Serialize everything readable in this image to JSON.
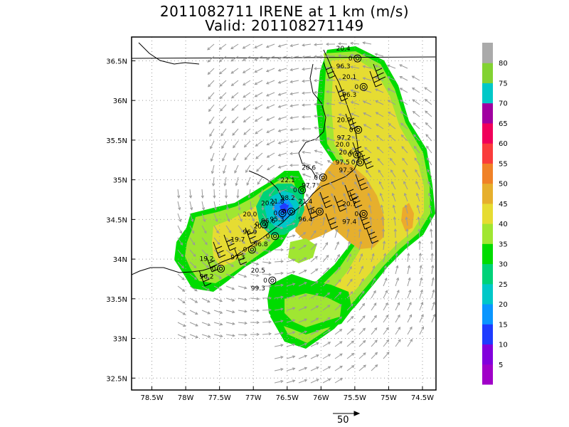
{
  "title": {
    "line1": "2011082711 IRENE at 1 km (m/s)",
    "line2": "Valid: 201108271149"
  },
  "map": {
    "lat_range": [
      32.35,
      36.8
    ],
    "lon_range": [
      -78.8,
      -74.3
    ],
    "lat_ticks": [
      {
        "value": 36.5,
        "label": "36.5N"
      },
      {
        "value": 36.0,
        "label": "36N"
      },
      {
        "value": 35.5,
        "label": "35.5N"
      },
      {
        "value": 35.0,
        "label": "35N"
      },
      {
        "value": 34.5,
        "label": "34.5N"
      },
      {
        "value": 34.0,
        "label": "34N"
      },
      {
        "value": 33.5,
        "label": "33.5N"
      },
      {
        "value": 33.0,
        "label": "33N"
      },
      {
        "value": 32.5,
        "label": "32.5N"
      }
    ],
    "lon_ticks": [
      {
        "value": -78.5,
        "label": "78.5W"
      },
      {
        "value": -78.0,
        "label": "78W"
      },
      {
        "value": -77.5,
        "label": "77.5W"
      },
      {
        "value": -77.0,
        "label": "77W"
      },
      {
        "value": -76.5,
        "label": "76.5W"
      },
      {
        "value": -76.0,
        "label": "76W"
      },
      {
        "value": -75.5,
        "label": "75.5W"
      },
      {
        "value": -75.0,
        "label": "75W"
      },
      {
        "value": -74.5,
        "label": "74.5W"
      }
    ],
    "gridlines": true,
    "vector_reference": {
      "value": 50,
      "label": "50"
    }
  },
  "colorbar": {
    "colors": [
      "#a000c8",
      "#8200dc",
      "#1e3cff",
      "#0a96ff",
      "#00c8c8",
      "#00d278",
      "#00dc00",
      "#a0e632",
      "#e6dc32",
      "#e6af2d",
      "#f08228",
      "#fa3c3c",
      "#f0005a",
      "#a000a0",
      "#00c8c8",
      "#82d232",
      "#aaaaaa"
    ],
    "labels": [
      "5",
      "10",
      "15",
      "20",
      "25",
      "30",
      "35",
      "40",
      "45",
      "50",
      "55",
      "60",
      "65",
      "70",
      "75",
      "80"
    ]
  },
  "stations": [
    {
      "lat": 36.53,
      "lon": -75.46,
      "lines": [
        "20.4",
        "0",
        "96.3"
      ]
    },
    {
      "lat": 36.17,
      "lon": -75.37,
      "lines": [
        "20.1",
        "0",
        "96.3"
      ]
    },
    {
      "lat": 35.63,
      "lon": -75.45,
      "lines": [
        "20.0",
        "0",
        "97.2"
      ]
    },
    {
      "lat": 35.32,
      "lon": -75.47,
      "lines": [
        "20.0",
        "0",
        "97.5"
      ]
    },
    {
      "lat": 35.22,
      "lon": -75.42,
      "lines": [
        "20.6",
        "0",
        "97.3"
      ]
    },
    {
      "lat": 35.03,
      "lon": -75.97,
      "lines": [
        "20.6",
        "0",
        "97.7"
      ]
    },
    {
      "lat": 34.87,
      "lon": -76.28,
      "lines": [
        "22.1",
        "0",
        "98.2"
      ]
    },
    {
      "lat": 34.6,
      "lon": -76.44,
      "lines": [
        "21.8",
        "0",
        "95.3"
      ]
    },
    {
      "lat": 34.58,
      "lon": -76.57,
      "lines": [
        "20.2",
        "0",
        "96.6"
      ]
    },
    {
      "lat": 34.6,
      "lon": -76.02,
      "lines": [
        "21.4",
        "0",
        "96.4"
      ]
    },
    {
      "lat": 34.57,
      "lon": -75.37,
      "lines": [
        "20.7",
        "0",
        "97.4"
      ]
    },
    {
      "lat": 34.44,
      "lon": -76.84,
      "lines": [
        "20.0",
        "0",
        "96.9"
      ]
    },
    {
      "lat": 34.29,
      "lon": -76.68,
      "lines": [
        "20.5",
        "0",
        "96.8"
      ]
    },
    {
      "lat": 34.12,
      "lon": -77.02,
      "lines": [
        "19.7",
        "0",
        "97.3"
      ]
    },
    {
      "lat": 33.88,
      "lon": -77.48,
      "lines": [
        "19.2",
        "0",
        "96.2"
      ]
    },
    {
      "lat": 33.73,
      "lon": -76.72,
      "lines": [
        "20.5",
        "0",
        "99.3"
      ]
    }
  ]
}
